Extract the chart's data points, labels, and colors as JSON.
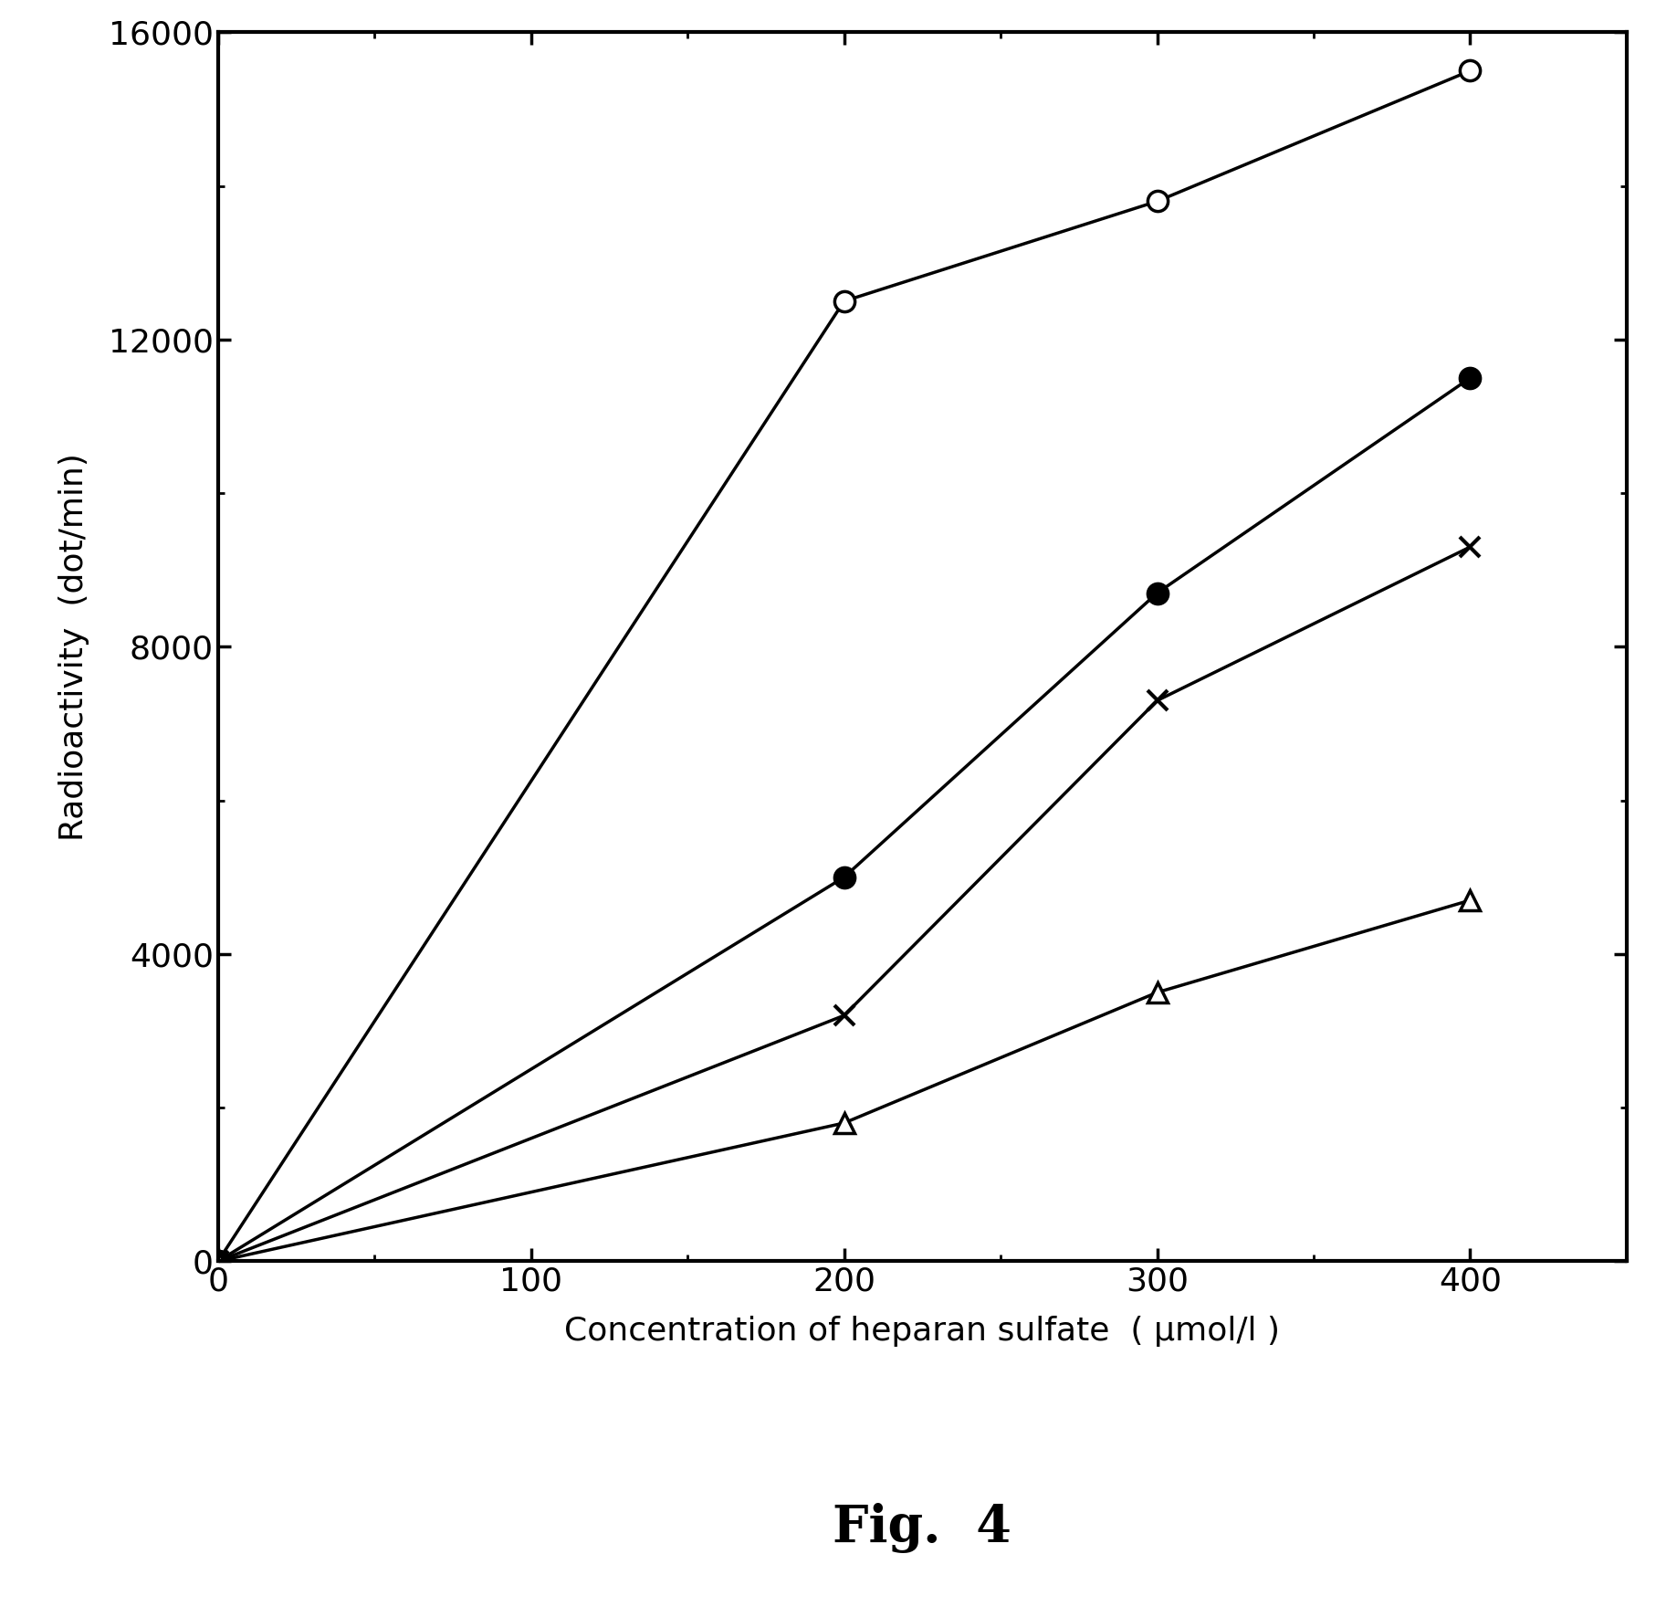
{
  "series": [
    {
      "x": [
        0,
        200,
        300,
        400
      ],
      "y": [
        0,
        12500,
        13800,
        15500
      ],
      "marker": "o",
      "markerfacecolor": "white",
      "markeredgecolor": "black",
      "markersize": 16,
      "markeredgewidth": 2.5
    },
    {
      "x": [
        0,
        200,
        300,
        400
      ],
      "y": [
        0,
        5000,
        8700,
        11500
      ],
      "marker": "o",
      "markerfacecolor": "black",
      "markeredgecolor": "black",
      "markersize": 16,
      "markeredgewidth": 2.5
    },
    {
      "x": [
        0,
        200,
        300,
        400
      ],
      "y": [
        0,
        3200,
        7300,
        9300
      ],
      "marker": "x",
      "markerfacecolor": "black",
      "markeredgecolor": "black",
      "markersize": 16,
      "markeredgewidth": 3.0
    },
    {
      "x": [
        0,
        200,
        300,
        400
      ],
      "y": [
        0,
        1800,
        3500,
        4700
      ],
      "marker": "^",
      "markerfacecolor": "white",
      "markeredgecolor": "black",
      "markersize": 16,
      "markeredgewidth": 2.5
    }
  ],
  "xlabel": "Concentration of heparan sulfate  ( μmol/l )",
  "ylabel_line1": "Radioactivity  (dot/min)",
  "xlim": [
    0,
    450
  ],
  "ylim": [
    0,
    16000
  ],
  "yticks": [
    0,
    4000,
    8000,
    12000,
    16000
  ],
  "xticks": [
    0,
    100,
    200,
    300,
    400
  ],
  "figcaption": "Fig.  4",
  "xlabel_fontsize": 26,
  "ylabel_fontsize": 26,
  "tick_fontsize": 26,
  "caption_fontsize": 40,
  "linewidth": 2.5,
  "spine_linewidth": 3.0,
  "background_color": "#ffffff"
}
